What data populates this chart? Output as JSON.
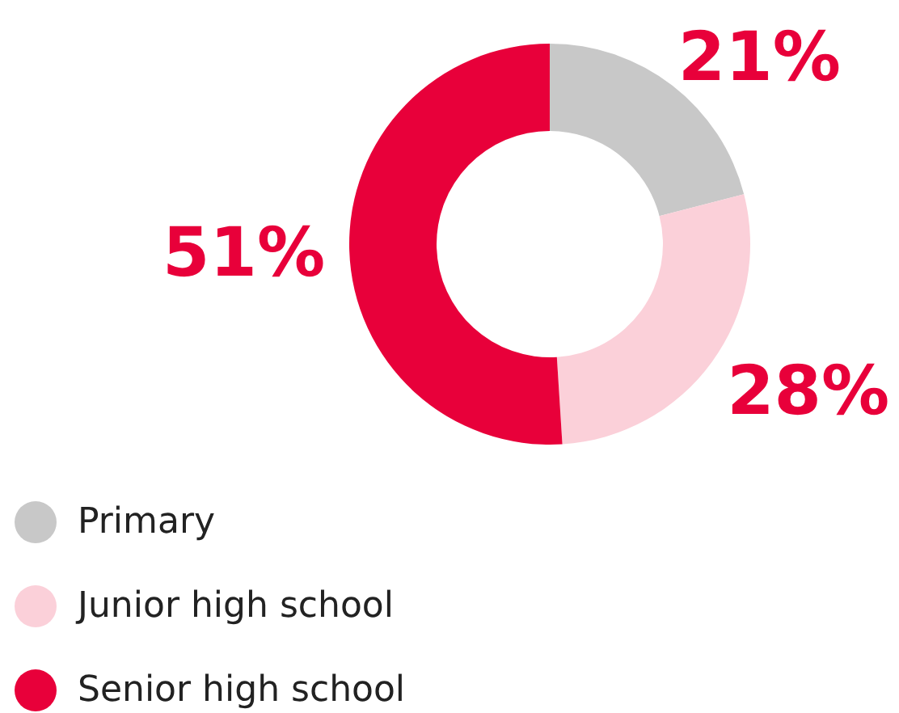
{
  "chart_data": {
    "type": "donut",
    "categories": [
      "Primary",
      "Junior high school",
      "Senior high school"
    ],
    "values": [
      21,
      28,
      51
    ],
    "colors": [
      "#c8c8c8",
      "#fbd0d9",
      "#e8003a"
    ],
    "value_labels": [
      "21%",
      "28%",
      "51%"
    ],
    "legend": "bottom left"
  }
}
